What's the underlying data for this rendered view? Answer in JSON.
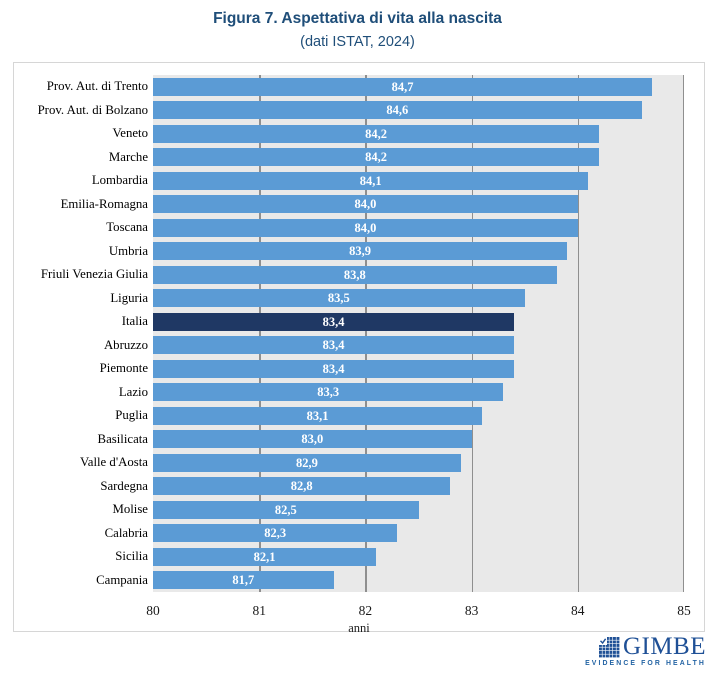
{
  "title": "Figura 7. Aspettativa di vita alla nascita",
  "subtitle": "(dati ISTAT, 2024)",
  "chart_data": {
    "type": "bar",
    "orientation": "horizontal",
    "title": "Figura 7. Aspettativa di vita alla nascita",
    "subtitle": "(dati ISTAT, 2024)",
    "xlabel": "anni",
    "xlim": [
      80,
      85
    ],
    "x_ticks": [
      80,
      81,
      82,
      83,
      84,
      85
    ],
    "x_tick_labels": [
      "80",
      "81",
      "82",
      "83",
      "84",
      "85"
    ],
    "grid": "vertical-on",
    "categories": [
      "Prov. Aut. di Trento",
      "Prov. Aut. di Bolzano",
      "Veneto",
      "Marche",
      "Lombardia",
      "Emilia-Romagna",
      "Toscana",
      "Umbria",
      "Friuli Venezia Giulia",
      "Liguria",
      "Italia",
      "Abruzzo",
      "Piemonte",
      "Lazio",
      "Puglia",
      "Basilicata",
      "Valle d'Aosta",
      "Sardegna",
      "Molise",
      "Calabria",
      "Sicilia",
      "Campania"
    ],
    "values": [
      84.7,
      84.6,
      84.2,
      84.2,
      84.1,
      84.0,
      84.0,
      83.9,
      83.8,
      83.5,
      83.4,
      83.4,
      83.4,
      83.3,
      83.1,
      83.0,
      82.9,
      82.8,
      82.5,
      82.3,
      82.1,
      81.7
    ],
    "value_labels": [
      "84,7",
      "84,6",
      "84,2",
      "84,2",
      "84,1",
      "84,0",
      "84,0",
      "83,9",
      "83,8",
      "83,5",
      "83,4",
      "83,4",
      "83,4",
      "83,3",
      "83,1",
      "83,0",
      "82,9",
      "82,8",
      "82,5",
      "82,3",
      "82,1",
      "81,7"
    ],
    "highlight_category": "Italia",
    "colors": {
      "bar": "#5B9BD5",
      "highlight_bar": "#1F3864",
      "plot_background": "#E9E9E9",
      "gridline": "#8F8F8F",
      "frame_border": "#D6D6D6",
      "title_text": "#1F4E79",
      "value_label_text": "#FFFFFF"
    }
  },
  "footer": {
    "logo_text": "GIMBE",
    "logo_tagline": "EVIDENCE FOR HEALTH",
    "logo_color": "#1F5096"
  }
}
